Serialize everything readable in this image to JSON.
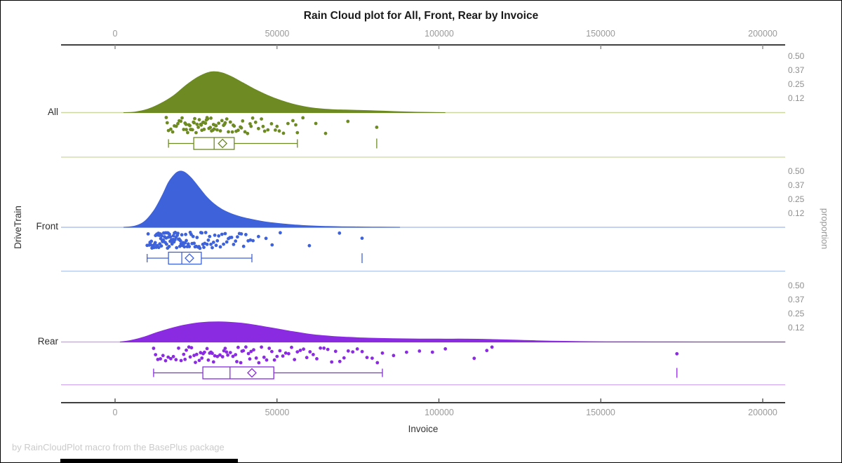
{
  "chart_data": {
    "type": "raincloud",
    "title": "Rain Cloud plot for All, Front, Rear by Invoice",
    "xlabel": "Invoice",
    "ylabel": "DriveTrain",
    "y2label": "proportion",
    "footnote": "by RainCloudPlot macro from the BasePlus package",
    "x_axis": {
      "ticks": [
        0,
        50000,
        100000,
        150000,
        200000
      ],
      "labels": [
        "0",
        "50000",
        "100000",
        "150000",
        "200000"
      ],
      "range": [
        -16700,
        207000
      ]
    },
    "proportion_axis": {
      "labels": [
        "0.50",
        "0.37",
        "0.25",
        "0.12"
      ],
      "values": [
        0.5,
        0.375,
        0.25,
        0.125
      ]
    },
    "axis_color": "#000000",
    "tick_color": "#8a8a8a",
    "groups": [
      {
        "name": "All",
        "color": "#6d8a23",
        "light_color": "#ccd8a0",
        "density": [
          [
            2600,
            0
          ],
          [
            6000,
            0.005
          ],
          [
            10000,
            0.03
          ],
          [
            14000,
            0.08
          ],
          [
            18000,
            0.15
          ],
          [
            22000,
            0.245
          ],
          [
            25500,
            0.315
          ],
          [
            28500,
            0.355
          ],
          [
            30500,
            0.365
          ],
          [
            33000,
            0.355
          ],
          [
            36000,
            0.32
          ],
          [
            39500,
            0.265
          ],
          [
            43000,
            0.21
          ],
          [
            47000,
            0.155
          ],
          [
            51000,
            0.11
          ],
          [
            55000,
            0.075
          ],
          [
            59000,
            0.05
          ],
          [
            63000,
            0.035
          ],
          [
            67000,
            0.027
          ],
          [
            71000,
            0.023
          ],
          [
            75000,
            0.02
          ],
          [
            79000,
            0.017
          ],
          [
            83000,
            0.013
          ],
          [
            88000,
            0.008
          ],
          [
            93000,
            0.004
          ],
          [
            98000,
            0.001
          ],
          [
            102000,
            0
          ]
        ],
        "box": {
          "low": 16500,
          "q1": 24300,
          "median": 30600,
          "q3": 36800,
          "high": 56300,
          "mean": 33200,
          "outliers": [
            80800
          ]
        },
        "points": [
          15800,
          16100,
          16500,
          17200,
          17800,
          18300,
          18900,
          19400,
          19800,
          20300,
          20700,
          21200,
          21600,
          21900,
          22000,
          22400,
          22800,
          23100,
          23300,
          23500,
          23900,
          24200,
          24400,
          24600,
          25000,
          25300,
          25700,
          26000,
          26400,
          26600,
          26800,
          27100,
          27300,
          27500,
          27900,
          28200,
          28400,
          28600,
          29000,
          29400,
          29600,
          29800,
          30200,
          30400,
          30600,
          31000,
          31200,
          31500,
          32000,
          32500,
          33000,
          33500,
          33800,
          34000,
          34500,
          35000,
          35600,
          36200,
          36500,
          36800,
          37400,
          38000,
          38700,
          39000,
          39400,
          40100,
          40900,
          41700,
          42000,
          42500,
          43400,
          44300,
          45200,
          45700,
          46200,
          47200,
          48300,
          49500,
          50000,
          50700,
          52000,
          53400,
          54900,
          55800,
          56300,
          58000,
          62000,
          65000,
          71900,
          80800
        ]
      },
      {
        "name": "Front",
        "color": "#3e62d9",
        "light_color": "#b0c4ee",
        "density": [
          [
            2600,
            0
          ],
          [
            6000,
            0.01
          ],
          [
            9000,
            0.05
          ],
          [
            12000,
            0.15
          ],
          [
            14500,
            0.28
          ],
          [
            16500,
            0.4
          ],
          [
            18500,
            0.475
          ],
          [
            20000,
            0.5
          ],
          [
            21500,
            0.49
          ],
          [
            23500,
            0.44
          ],
          [
            25500,
            0.37
          ],
          [
            28000,
            0.28
          ],
          [
            30500,
            0.21
          ],
          [
            33000,
            0.16
          ],
          [
            36000,
            0.12
          ],
          [
            39000,
            0.092
          ],
          [
            42000,
            0.072
          ],
          [
            45000,
            0.055
          ],
          [
            48000,
            0.042
          ],
          [
            52000,
            0.03
          ],
          [
            56000,
            0.02
          ],
          [
            60000,
            0.013
          ],
          [
            65000,
            0.008
          ],
          [
            70000,
            0.005
          ],
          [
            76000,
            0.003
          ],
          [
            82000,
            0.001
          ],
          [
            88000,
            0
          ]
        ],
        "box": {
          "low": 9900,
          "q1": 16500,
          "median": 20600,
          "q3": 26650,
          "high": 42250,
          "mean": 22970,
          "outliers": [
            76270
          ]
        },
        "points": [
          9900,
          10200,
          10500,
          10800,
          11000,
          11200,
          11400,
          11600,
          11800,
          12000,
          12200,
          12400,
          12500,
          12700,
          12900,
          13000,
          13200,
          13400,
          13500,
          13700,
          13800,
          14000,
          14100,
          14300,
          14400,
          14600,
          14700,
          14900,
          15000,
          15200,
          15300,
          15500,
          15600,
          15800,
          15900,
          16100,
          16200,
          16400,
          16500,
          16700,
          16800,
          17000,
          17100,
          17300,
          17400,
          17600,
          17700,
          17900,
          18000,
          18200,
          18300,
          18500,
          18600,
          18800,
          19000,
          19200,
          19400,
          19600,
          19800,
          20000,
          20200,
          20400,
          20600,
          20800,
          21000,
          21200,
          21400,
          21600,
          21800,
          22000,
          22300,
          22600,
          22900,
          23200,
          23500,
          23800,
          24100,
          24400,
          24700,
          25000,
          25300,
          25600,
          25900,
          26200,
          26500,
          26800,
          27100,
          27400,
          27700,
          28000,
          28400,
          28800,
          29200,
          29600,
          30000,
          30400,
          30800,
          31200,
          31600,
          32000,
          32500,
          33000,
          33500,
          34000,
          34500,
          35000,
          35500,
          36000,
          36600,
          37200,
          37800,
          38400,
          39000,
          39700,
          40400,
          41100,
          41800,
          42600,
          44300,
          46600,
          48500,
          51000,
          60000,
          69300,
          76270
        ]
      },
      {
        "name": "Rear",
        "color": "#8a2be2",
        "light_color": "#d0a8f0",
        "density": [
          [
            1500,
            0
          ],
          [
            5000,
            0.015
          ],
          [
            9000,
            0.045
          ],
          [
            13000,
            0.085
          ],
          [
            17000,
            0.12
          ],
          [
            21000,
            0.148
          ],
          [
            25000,
            0.168
          ],
          [
            29000,
            0.178
          ],
          [
            32000,
            0.18
          ],
          [
            35000,
            0.177
          ],
          [
            39000,
            0.168
          ],
          [
            43000,
            0.152
          ],
          [
            47000,
            0.132
          ],
          [
            51000,
            0.112
          ],
          [
            55000,
            0.092
          ],
          [
            59000,
            0.074
          ],
          [
            63000,
            0.06
          ],
          [
            67000,
            0.05
          ],
          [
            72000,
            0.042
          ],
          [
            77000,
            0.036
          ],
          [
            82000,
            0.032
          ],
          [
            88000,
            0.029
          ],
          [
            94000,
            0.027
          ],
          [
            100000,
            0.026
          ],
          [
            106000,
            0.026
          ],
          [
            112000,
            0.025
          ],
          [
            118000,
            0.021
          ],
          [
            124000,
            0.016
          ],
          [
            130000,
            0.011
          ],
          [
            137000,
            0.007
          ],
          [
            144000,
            0.004
          ],
          [
            152000,
            0.002
          ],
          [
            160000,
            0.001
          ],
          [
            170000,
            0.0005
          ],
          [
            180000,
            0
          ],
          [
            207000,
            0
          ]
        ],
        "box": {
          "low": 11900,
          "q1": 27100,
          "median": 35500,
          "q3": 49000,
          "high": 82560,
          "mean": 42250,
          "outliers": [
            173500
          ]
        },
        "points": [
          11900,
          12500,
          13200,
          14000,
          14800,
          15600,
          16400,
          17200,
          18000,
          18800,
          19600,
          20400,
          21200,
          21600,
          22000,
          22800,
          23200,
          23600,
          24400,
          24800,
          25200,
          26000,
          26400,
          26800,
          27200,
          27600,
          28400,
          28800,
          29200,
          29600,
          30000,
          30400,
          30800,
          31600,
          32400,
          33200,
          33600,
          34000,
          34400,
          34800,
          35600,
          36400,
          37200,
          37600,
          38000,
          38800,
          39200,
          39600,
          40400,
          41200,
          41600,
          42000,
          42800,
          43600,
          44400,
          45200,
          46000,
          46800,
          47600,
          48400,
          49200,
          50000,
          50900,
          51800,
          52700,
          53600,
          54500,
          55400,
          56300,
          57200,
          58200,
          59200,
          60200,
          61200,
          62300,
          63400,
          64500,
          65700,
          66900,
          68100,
          69400,
          70700,
          72000,
          73400,
          74800,
          76300,
          77800,
          79400,
          81000,
          82560,
          86000,
          90000,
          94000,
          98000,
          102000,
          110900,
          114800,
          116400,
          173500
        ]
      }
    ]
  }
}
